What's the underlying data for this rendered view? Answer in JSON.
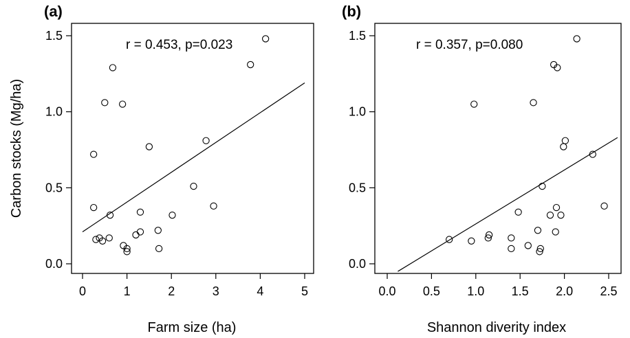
{
  "chart_data": [
    {
      "type": "scatter",
      "panel_label": "(a)",
      "annotation": "r = 0.453, p=0.023",
      "xlabel": "Farm size (ha)",
      "ylabel": "Carbon stocks (Mg/ha)",
      "xlim": [
        0,
        5
      ],
      "ylim": [
        0,
        1.5
      ],
      "xticks": [
        "0",
        "1",
        "2",
        "3",
        "4",
        "5"
      ],
      "yticks": [
        "0.0",
        "0.5",
        "1.0",
        "1.5"
      ],
      "series": [
        {
          "points": [
            [
              0.25,
              0.72
            ],
            [
              0.25,
              0.37
            ],
            [
              0.3,
              0.16
            ],
            [
              0.38,
              0.17
            ],
            [
              0.45,
              0.15
            ],
            [
              0.5,
              1.06
            ],
            [
              0.6,
              0.17
            ],
            [
              0.62,
              0.32
            ],
            [
              0.68,
              1.29
            ],
            [
              0.9,
              1.05
            ],
            [
              0.92,
              0.12
            ],
            [
              1.0,
              0.08
            ],
            [
              1.0,
              0.1
            ],
            [
              1.2,
              0.19
            ],
            [
              1.3,
              0.34
            ],
            [
              1.3,
              0.21
            ],
            [
              1.5,
              0.77
            ],
            [
              1.7,
              0.22
            ],
            [
              1.72,
              0.1
            ],
            [
              2.02,
              0.32
            ],
            [
              2.5,
              0.51
            ],
            [
              2.78,
              0.81
            ],
            [
              2.95,
              0.38
            ],
            [
              3.78,
              1.31
            ],
            [
              4.12,
              1.48
            ]
          ],
          "fit_line": {
            "x": [
              0,
              5
            ],
            "y": [
              0.21,
              1.19
            ]
          }
        }
      ],
      "grid": false,
      "legend": "none"
    },
    {
      "type": "scatter",
      "panel_label": "(b)",
      "annotation": "r = 0.357, p=0.080",
      "xlabel": "Shannon diverity index",
      "ylabel": "",
      "xlim": [
        0,
        2.5
      ],
      "ylim": [
        0,
        1.5
      ],
      "xticks": [
        "0.0",
        "0.5",
        "1.0",
        "1.5",
        "2.0",
        "2.5"
      ],
      "yticks": [
        "0.0",
        "0.5",
        "1.0",
        "1.5"
      ],
      "series": [
        {
          "points": [
            [
              0.7,
              0.16
            ],
            [
              0.95,
              0.15
            ],
            [
              0.98,
              1.05
            ],
            [
              1.14,
              0.17
            ],
            [
              1.15,
              0.19
            ],
            [
              1.4,
              0.17
            ],
            [
              1.4,
              0.1
            ],
            [
              1.48,
              0.34
            ],
            [
              1.59,
              0.12
            ],
            [
              1.65,
              1.06
            ],
            [
              1.7,
              0.22
            ],
            [
              1.72,
              0.08
            ],
            [
              1.73,
              0.1
            ],
            [
              1.75,
              0.51
            ],
            [
              1.84,
              0.32
            ],
            [
              1.88,
              1.31
            ],
            [
              1.9,
              0.21
            ],
            [
              1.91,
              0.37
            ],
            [
              1.92,
              1.29
            ],
            [
              1.96,
              0.32
            ],
            [
              1.99,
              0.77
            ],
            [
              2.01,
              0.81
            ],
            [
              2.14,
              1.48
            ],
            [
              2.32,
              0.72
            ],
            [
              2.45,
              0.38
            ]
          ],
          "fit_line": {
            "x": [
              0.12,
              2.6
            ],
            "y": [
              -0.05,
              0.83
            ]
          }
        }
      ],
      "grid": false,
      "legend": "none"
    }
  ]
}
